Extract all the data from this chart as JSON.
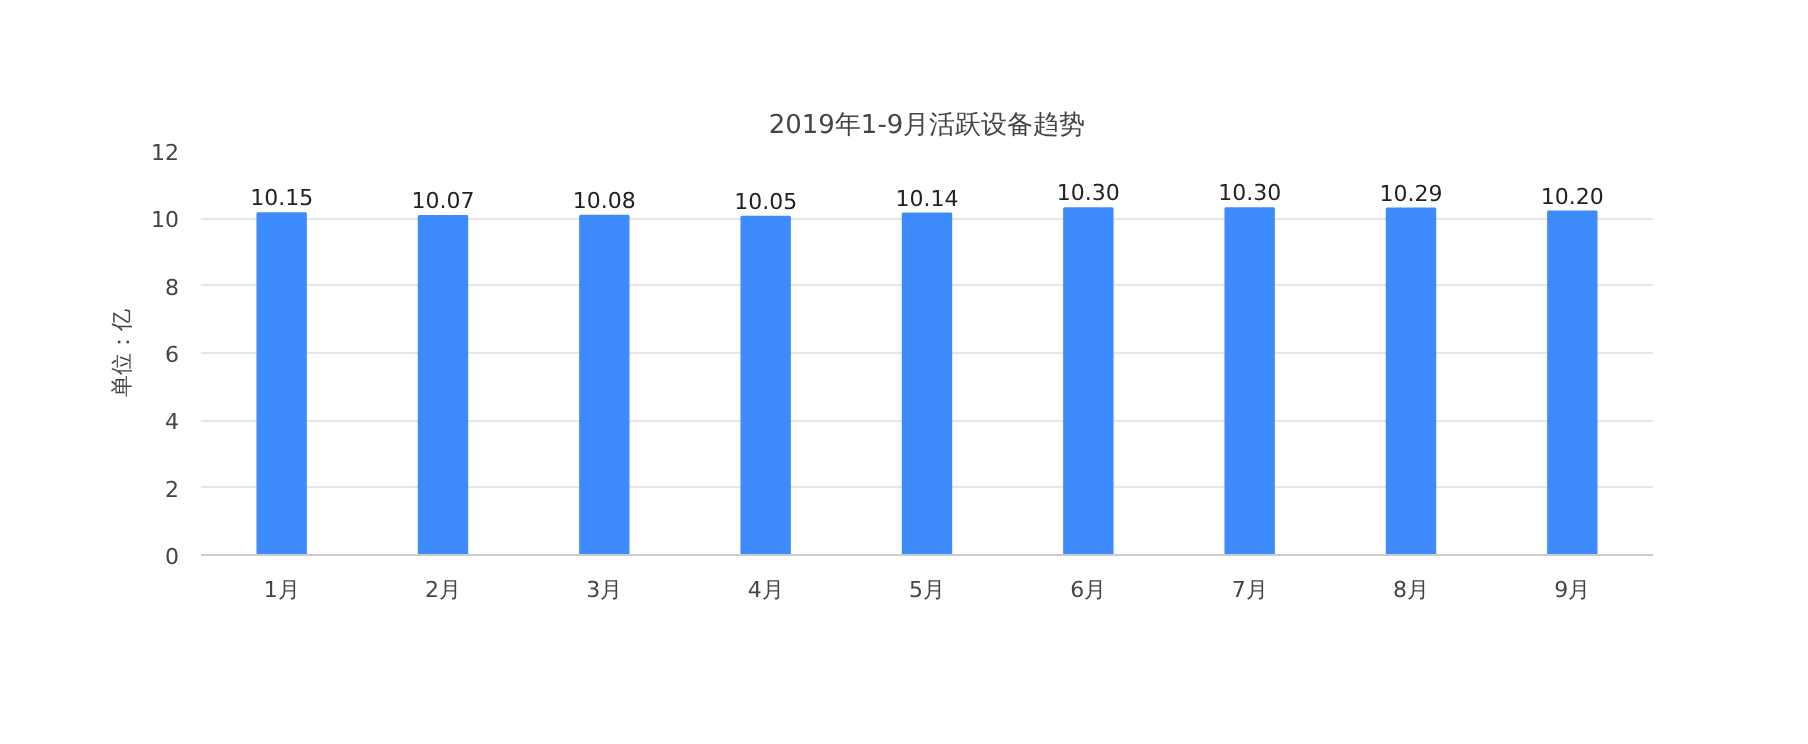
{
  "chart_data": {
    "type": "bar",
    "title": "2019年1-9月活跃设备趋势",
    "ylabel": "单位：亿",
    "categories": [
      "1月",
      "2月",
      "3月",
      "4月",
      "5月",
      "6月",
      "7月",
      "8月",
      "9月"
    ],
    "values": [
      10.15,
      10.07,
      10.08,
      10.05,
      10.14,
      10.3,
      10.3,
      10.29,
      10.2
    ],
    "value_labels": [
      "10.15",
      "10.07",
      "10.08",
      "10.05",
      "10.14",
      "10.30",
      "10.30",
      "10.29",
      "10.20"
    ],
    "color": "#3d8bfd",
    "ylim": [
      0,
      12
    ],
    "yticks": [
      0,
      2,
      4,
      6,
      8,
      10,
      12
    ],
    "grid": "y"
  }
}
